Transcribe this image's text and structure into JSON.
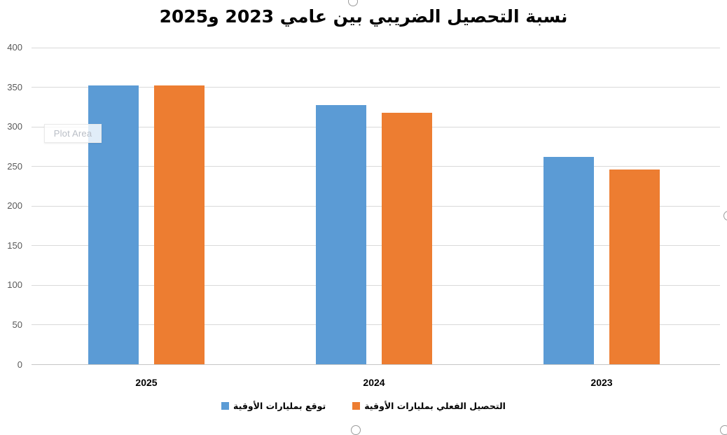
{
  "title": "نسبة التحصيل الضريبي بين عامي 2023 و2025",
  "plot_area_tooltip": "Plot Area",
  "colors": {
    "series_forecast": "#5B9BD5",
    "series_actual": "#ED7D31",
    "gridline": "#D9D9D9",
    "axis_text": "#595959",
    "category_text": "#000000",
    "tooltip_text": "#B9BEC6"
  },
  "chart_data": {
    "type": "bar",
    "rtl": true,
    "title": "نسبة التحصيل الضريبي بين عامي 2023 و2025",
    "categories": [
      "2025",
      "2024",
      "2023"
    ],
    "series": [
      {
        "name": "توقع بمليارات الأوقية",
        "color": "#5B9BD5",
        "values": [
          352,
          328,
          262
        ]
      },
      {
        "name": "التحصيل الفعلي بمليارات الأوقية",
        "color": "#ED7D31",
        "values": [
          352,
          318,
          246
        ]
      }
    ],
    "xlabel": "",
    "ylabel": "",
    "ylim": [
      0,
      400
    ],
    "yticks": [
      0,
      50,
      100,
      150,
      200,
      250,
      300,
      350,
      400
    ],
    "grid": true,
    "legend_position": "bottom"
  },
  "legend": {
    "items": [
      {
        "label": "توقع بمليارات الأوقية",
        "color": "#5B9BD5"
      },
      {
        "label": "التحصيل الفعلي بمليارات الأوقية",
        "color": "#ED7D31"
      }
    ]
  }
}
